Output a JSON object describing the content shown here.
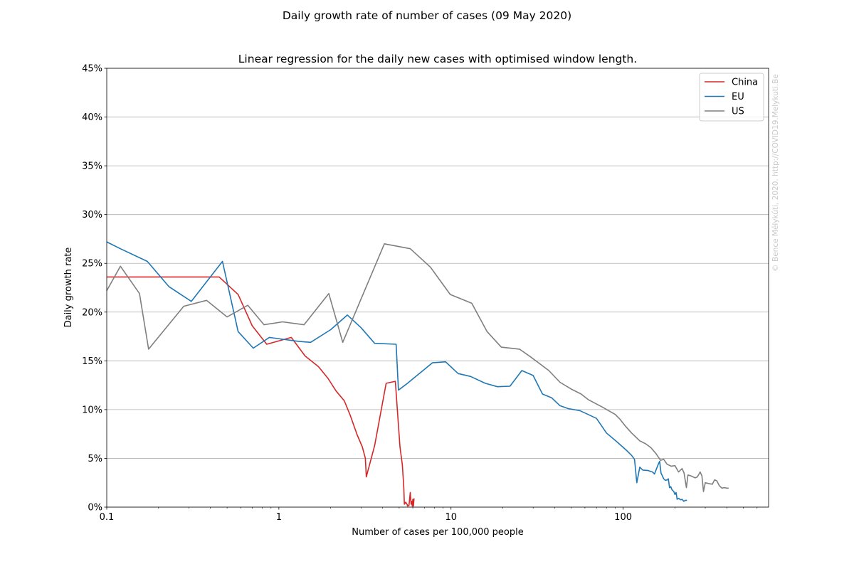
{
  "suptitle": "Daily growth rate of number of cases (09 May 2020)",
  "watermark": "© Bence Mélykúti, 2020. http://COVID19.Melykuti.Be",
  "chart_data": {
    "type": "line",
    "title": "Linear regression for the daily new cases with optimised window length.",
    "xlabel": "Number of cases per 100,000 people",
    "ylabel": "Daily growth rate",
    "xscale": "log",
    "xlim": [
      0.1,
      700
    ],
    "ylim": [
      0,
      45
    ],
    "x_ticks": [
      0.1,
      1,
      10,
      100
    ],
    "x_tick_labels": [
      "0.1",
      "1",
      "10",
      "100"
    ],
    "y_ticks": [
      0,
      5,
      10,
      15,
      20,
      25,
      30,
      35,
      40,
      45
    ],
    "y_tick_labels": [
      "0%",
      "5%",
      "10%",
      "15%",
      "20%",
      "25%",
      "30%",
      "35%",
      "40%",
      "45%"
    ],
    "grid": "y-major",
    "legend": "top-right",
    "series": [
      {
        "name": "China",
        "color": "#d62728",
        "points": [
          [
            0.1,
            23.6
          ],
          [
            0.45,
            23.6
          ],
          [
            0.58,
            21.8
          ],
          [
            0.7,
            18.6
          ],
          [
            0.85,
            16.7
          ],
          [
            1.18,
            17.4
          ],
          [
            1.42,
            15.5
          ],
          [
            1.7,
            14.4
          ],
          [
            1.93,
            13.2
          ],
          [
            2.15,
            11.9
          ],
          [
            2.4,
            10.9
          ],
          [
            2.6,
            9.4
          ],
          [
            2.85,
            7.4
          ],
          [
            3.05,
            6.2
          ],
          [
            3.18,
            5.0
          ],
          [
            3.22,
            3.1
          ],
          [
            3.6,
            6.3
          ],
          [
            4.2,
            12.7
          ],
          [
            4.75,
            12.9
          ],
          [
            5.05,
            6.2
          ],
          [
            5.22,
            4.3
          ],
          [
            5.32,
            2.0
          ],
          [
            5.36,
            0.3
          ],
          [
            5.45,
            0.5
          ],
          [
            5.55,
            0.3
          ],
          [
            5.6,
            0.1
          ],
          [
            5.7,
            0.2
          ],
          [
            5.8,
            1.5
          ],
          [
            5.86,
            0.3
          ],
          [
            5.9,
            0.6
          ],
          [
            5.96,
            0.1
          ],
          [
            6.0,
            0.8
          ],
          [
            6.05,
            0.1
          ],
          [
            6.1,
            0.9
          ]
        ]
      },
      {
        "name": "EU",
        "color": "#1f77b4",
        "points": [
          [
            0.1,
            27.2
          ],
          [
            0.12,
            26.5
          ],
          [
            0.172,
            25.2
          ],
          [
            0.23,
            22.6
          ],
          [
            0.31,
            21.1
          ],
          [
            0.47,
            25.2
          ],
          [
            0.58,
            18.0
          ],
          [
            0.71,
            16.3
          ],
          [
            0.88,
            17.4
          ],
          [
            1.3,
            17.0
          ],
          [
            1.53,
            16.9
          ],
          [
            2.0,
            18.2
          ],
          [
            2.5,
            19.7
          ],
          [
            3.0,
            18.4
          ],
          [
            3.6,
            16.8
          ],
          [
            4.8,
            16.7
          ],
          [
            4.95,
            12.0
          ],
          [
            5.5,
            12.6
          ],
          [
            7.8,
            14.8
          ],
          [
            9.3,
            14.9
          ],
          [
            11.0,
            13.7
          ],
          [
            13.0,
            13.4
          ],
          [
            15.8,
            12.7
          ],
          [
            18.6,
            12.35
          ],
          [
            22.0,
            12.4
          ],
          [
            25.8,
            14.0
          ],
          [
            30.0,
            13.5
          ],
          [
            34.0,
            11.6
          ],
          [
            38.5,
            11.2
          ],
          [
            43.0,
            10.4
          ],
          [
            48.0,
            10.1
          ],
          [
            56.0,
            9.9
          ],
          [
            70.0,
            9.1
          ],
          [
            80.0,
            7.6
          ],
          [
            92.0,
            6.7
          ],
          [
            105.0,
            5.8
          ],
          [
            112.0,
            5.3
          ],
          [
            116.5,
            4.9
          ],
          [
            120.0,
            2.5
          ],
          [
            125.0,
            4.1
          ],
          [
            130.0,
            3.8
          ],
          [
            140.0,
            3.75
          ],
          [
            148.0,
            3.6
          ],
          [
            152.0,
            3.4
          ],
          [
            160.0,
            4.4
          ],
          [
            163.0,
            4.7
          ],
          [
            166.0,
            3.5
          ],
          [
            172.0,
            2.9
          ],
          [
            176.0,
            2.75
          ],
          [
            181.0,
            2.8
          ],
          [
            183.0,
            2.9
          ],
          [
            186.0,
            2.0
          ],
          [
            189.0,
            2.1
          ],
          [
            192.0,
            1.8
          ],
          [
            197.0,
            1.6
          ],
          [
            200.0,
            1.3
          ],
          [
            203.0,
            1.5
          ],
          [
            206.0,
            0.8
          ],
          [
            210.0,
            0.9
          ],
          [
            216.0,
            0.75
          ],
          [
            220.0,
            0.8
          ],
          [
            225.0,
            0.6
          ],
          [
            230.0,
            0.7
          ],
          [
            235.0,
            0.7
          ]
        ]
      },
      {
        "name": "US",
        "color": "#7f7f7f",
        "points": [
          [
            0.1,
            22.2
          ],
          [
            0.12,
            24.7
          ],
          [
            0.155,
            21.9
          ],
          [
            0.175,
            16.2
          ],
          [
            0.28,
            20.6
          ],
          [
            0.38,
            21.2
          ],
          [
            0.5,
            19.5
          ],
          [
            0.66,
            20.7
          ],
          [
            0.82,
            18.7
          ],
          [
            1.05,
            19.0
          ],
          [
            1.4,
            18.7
          ],
          [
            1.95,
            21.9
          ],
          [
            2.35,
            16.9
          ],
          [
            4.1,
            27.0
          ],
          [
            5.8,
            26.5
          ],
          [
            7.6,
            24.6
          ],
          [
            9.9,
            21.8
          ],
          [
            13.2,
            20.9
          ],
          [
            16.2,
            18.0
          ],
          [
            19.6,
            16.4
          ],
          [
            25.0,
            16.2
          ],
          [
            29.0,
            15.4
          ],
          [
            37.0,
            14.0
          ],
          [
            43.0,
            12.8
          ],
          [
            50.0,
            12.1
          ],
          [
            57.0,
            11.6
          ],
          [
            63.0,
            11.0
          ],
          [
            75.0,
            10.3
          ],
          [
            90.0,
            9.5
          ],
          [
            96.0,
            9.0
          ],
          [
            102.0,
            8.4
          ],
          [
            112.0,
            7.6
          ],
          [
            125.0,
            6.8
          ],
          [
            135.0,
            6.5
          ],
          [
            145.0,
            6.1
          ],
          [
            155.0,
            5.5
          ],
          [
            165.0,
            4.8
          ],
          [
            172.0,
            4.9
          ],
          [
            180.0,
            4.4
          ],
          [
            190.0,
            4.2
          ],
          [
            200.0,
            4.25
          ],
          [
            210.0,
            3.6
          ],
          [
            220.0,
            3.95
          ],
          [
            226.0,
            3.5
          ],
          [
            233.0,
            2.0
          ],
          [
            238.0,
            3.3
          ],
          [
            248.0,
            3.2
          ],
          [
            262.0,
            3.0
          ],
          [
            270.0,
            3.1
          ],
          [
            280.0,
            3.6
          ],
          [
            287.0,
            3.2
          ],
          [
            293.0,
            1.6
          ],
          [
            300.0,
            2.5
          ],
          [
            317.0,
            2.4
          ],
          [
            330.0,
            2.35
          ],
          [
            340.0,
            2.8
          ],
          [
            350.0,
            2.7
          ],
          [
            362.0,
            2.2
          ],
          [
            375.0,
            1.95
          ],
          [
            388.0,
            2.0
          ],
          [
            400.0,
            1.95
          ],
          [
            410.0,
            1.95
          ]
        ]
      }
    ]
  }
}
